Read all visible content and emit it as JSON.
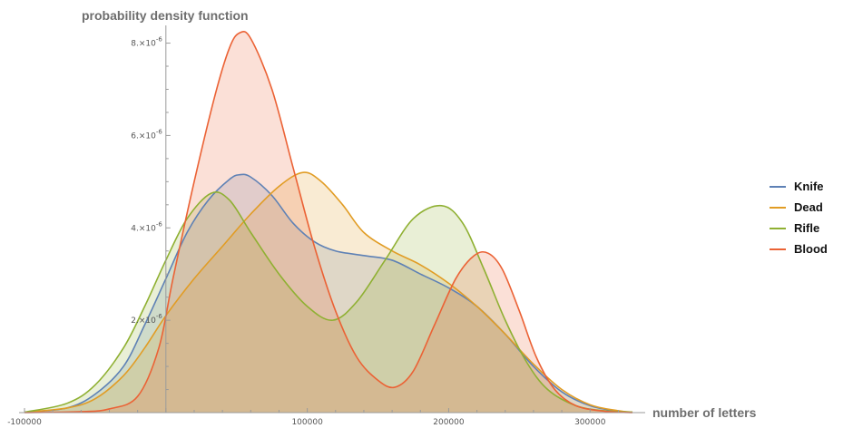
{
  "chart_data": {
    "type": "area",
    "ylabel": "probability density function",
    "xlabel": "number of letters",
    "xlim": [
      -100000,
      330000
    ],
    "ylim": [
      0,
      8.6e-06
    ],
    "x_ticks": [
      {
        "value": -100000,
        "label": "-100000"
      },
      {
        "value": 100000,
        "label": "100000"
      },
      {
        "value": 200000,
        "label": "200000"
      },
      {
        "value": 300000,
        "label": "300000"
      }
    ],
    "y_ticks": [
      {
        "value": 2e-06,
        "label": "2.×10",
        "exp": "-6"
      },
      {
        "value": 4e-06,
        "label": "4.×10",
        "exp": "-6"
      },
      {
        "value": 6e-06,
        "label": "6.×10",
        "exp": "-6"
      },
      {
        "value": 8e-06,
        "label": "8.×10",
        "exp": "-6"
      }
    ],
    "series": [
      {
        "name": "Knife",
        "color": "#5e81b5",
        "x": [
          -100000,
          -70000,
          -50000,
          -30000,
          -15000,
          0,
          15000,
          30000,
          45000,
          52000,
          60000,
          75000,
          90000,
          105000,
          120000,
          140000,
          160000,
          180000,
          200000,
          220000,
          240000,
          260000,
          280000,
          300000,
          320000,
          330000
        ],
        "y": [
          1e-08,
          1e-07,
          4e-07,
          1e-06,
          1.9e-06,
          2.9e-06,
          3.9e-06,
          4.6e-06,
          5.05e-06,
          5.15e-06,
          5.1e-06,
          4.7e-06,
          4.1e-06,
          3.7e-06,
          3.5e-06,
          3.4e-06,
          3.3e-06,
          3e-06,
          2.7e-06,
          2.3e-06,
          1.7e-06,
          1e-06,
          4.5e-07,
          1.5e-07,
          3e-08,
          1e-08
        ]
      },
      {
        "name": "Dead",
        "color": "#e19c24",
        "x": [
          -100000,
          -70000,
          -50000,
          -30000,
          -15000,
          0,
          20000,
          40000,
          60000,
          80000,
          97000,
          110000,
          125000,
          140000,
          160000,
          180000,
          200000,
          220000,
          240000,
          260000,
          280000,
          300000,
          320000,
          330000
        ],
        "y": [
          1e-08,
          1e-07,
          3e-07,
          8e-07,
          1.4e-06,
          2.1e-06,
          2.9e-06,
          3.6e-06,
          4.3e-06,
          4.9e-06,
          5.2e-06,
          5e-06,
          4.5e-06,
          3.9e-06,
          3.5e-06,
          3.2e-06,
          2.8e-06,
          2.3e-06,
          1.7e-06,
          1.05e-06,
          5e-07,
          1.7e-07,
          4e-08,
          1e-08
        ]
      },
      {
        "name": "Rifle",
        "color": "#8fb032",
        "x": [
          -100000,
          -70000,
          -50000,
          -30000,
          -15000,
          0,
          15000,
          32000,
          45000,
          60000,
          80000,
          100000,
          118000,
          135000,
          155000,
          175000,
          195000,
          210000,
          225000,
          240000,
          255000,
          270000,
          290000,
          310000,
          330000
        ],
        "y": [
          1e-08,
          2e-07,
          6e-07,
          1.4e-06,
          2.3e-06,
          3.3e-06,
          4.2e-06,
          4.75e-06,
          4.6e-06,
          3.9e-06,
          3e-06,
          2.3e-06,
          2e-06,
          2.4e-06,
          3.3e-06,
          4.2e-06,
          4.48e-06,
          4.1e-06,
          3.1e-06,
          2e-06,
          1.1e-06,
          5e-07,
          1.5e-07,
          4e-08,
          1e-08
        ]
      },
      {
        "name": "Blood",
        "color": "#eb6235",
        "x": [
          -100000,
          -60000,
          -40000,
          -20000,
          -5000,
          5000,
          20000,
          35000,
          45000,
          52000,
          60000,
          75000,
          90000,
          105000,
          120000,
          135000,
          150000,
          162000,
          175000,
          190000,
          205000,
          218000,
          228000,
          238000,
          250000,
          262000,
          275000,
          290000,
          310000,
          330000
        ],
        "y": [
          0.0,
          2e-08,
          8e-08,
          3.5e-07,
          1.4e-06,
          2.9e-06,
          5e-06,
          6.9e-06,
          7.9e-06,
          8.22e-06,
          8.1e-06,
          7e-06,
          5.3e-06,
          3.6e-06,
          2.2e-06,
          1.2e-06,
          7e-07,
          5.5e-07,
          9e-07,
          1.9e-06,
          2.9e-06,
          3.4e-06,
          3.45e-06,
          3.1e-06,
          2.2e-06,
          1.2e-06,
          5e-07,
          1.5e-07,
          3e-08,
          0.0
        ]
      }
    ]
  }
}
